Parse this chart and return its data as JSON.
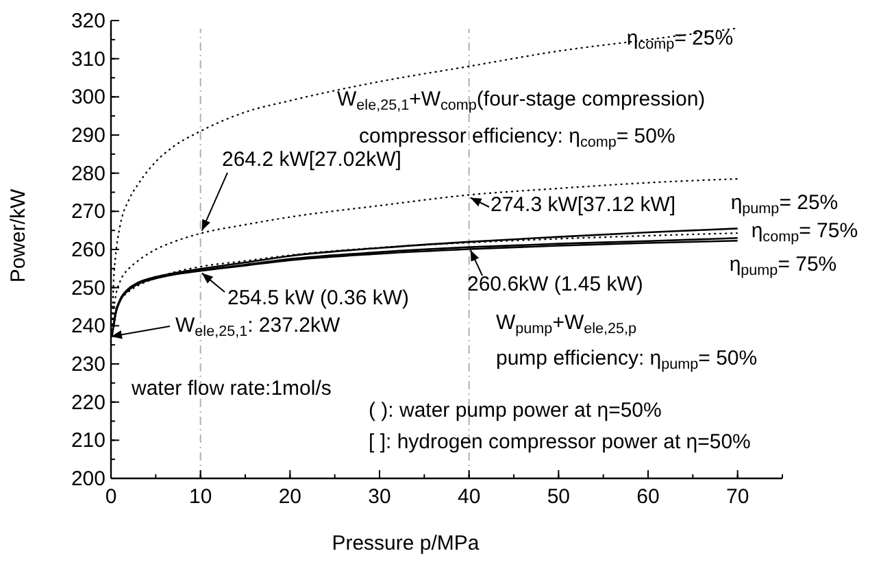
{
  "chart_data": {
    "type": "line",
    "xlabel": "Pressure p/MPa",
    "ylabel": "Power/kW",
    "x": [
      0.1,
      0.3,
      0.5,
      1,
      2,
      3,
      5,
      7,
      10,
      15,
      20,
      30,
      40,
      50,
      60,
      70
    ],
    "series": [
      {
        "name": "η$_{comp}$= 25%",
        "color": "#000000",
        "line_style": "dotted",
        "values": [
          237.2,
          252,
          258,
          266,
          273,
          277,
          283,
          287,
          291,
          296,
          299,
          304,
          308,
          312,
          315,
          318
        ]
      },
      {
        "color": "#000000",
        "line_style": "dotted",
        "values": [
          237.2,
          244,
          247.5,
          251.5,
          255,
          257,
          260,
          262,
          264.2,
          266.5,
          268.5,
          271.5,
          274.3,
          276,
          277.5,
          278.5
        ]
      },
      {
        "name": "η$_{comp}$= 75%",
        "color": "#000000",
        "line_style": "dotted",
        "values": [
          237.2,
          242,
          244,
          246.5,
          249,
          250.5,
          252.5,
          254,
          255.5,
          257,
          258.5,
          260.5,
          261.8,
          262.8,
          263.6,
          264.3
        ]
      },
      {
        "name": "η$_{pump}$= 25%",
        "color": "#000000",
        "line_style": "solid",
        "values": [
          null,
          240.3,
          243.3,
          246.8,
          249.8,
          251.3,
          252.8,
          253.8,
          254.9,
          256.6,
          258.3,
          260.4,
          262,
          263.3,
          264.5,
          265.5
        ]
      },
      {
        "color": "#000000",
        "line_style": "solid",
        "values": [
          237.2,
          240,
          243,
          246.5,
          249.5,
          251,
          252.5,
          253.5,
          254.5,
          256,
          257.5,
          259.3,
          260.6,
          261.5,
          262.2,
          263
        ]
      },
      {
        "name": "η$_{pump}$= 75%",
        "color": "#000000",
        "line_style": "solid",
        "values": [
          null,
          239.9,
          242.9,
          246.4,
          249.4,
          250.9,
          252.4,
          253.4,
          254.4,
          255.8,
          257.2,
          258.9,
          260.1,
          261,
          261.7,
          262.3
        ]
      }
    ],
    "xlim": [
      0,
      75
    ],
    "xticks": [
      0,
      10,
      20,
      30,
      40,
      50,
      60,
      70
    ],
    "ylim": [
      200,
      320
    ],
    "yticks": [
      200,
      210,
      220,
      230,
      240,
      250,
      260,
      270,
      280,
      290,
      300,
      310,
      320
    ],
    "ref_lines": [
      {
        "axis": "x",
        "value": 10,
        "color": "#b0b0b0",
        "line_style": "dashdot"
      },
      {
        "axis": "x",
        "value": 40,
        "color": "#b0b0b0",
        "line_style": "dashdot"
      }
    ],
    "annotations": [
      "W$_{ele,25,1}$+W$_{comp}$(four-stage compression)",
      "compressor efficiency: η$_{comp}$= 50%",
      "W$_{pump}$+W$_{ele,25,p}$",
      "pump efficiency: η$_{pump}$= 50%",
      "water flow rate:1mol/s",
      "( ): water pump power at η=50%",
      "[ ]: hydrogen compressor power at η=50%",
      {
        "text": "264.2 kW[27.02kW]",
        "x": 10,
        "y": 264.2
      },
      {
        "text": "274.3 kW[37.12 kW]",
        "x": 40,
        "y": 274.3
      },
      {
        "text": "254.5 kW (0.36 kW)",
        "x": 10,
        "y": 254.5
      },
      {
        "text": "260.6kW (1.45 kW)",
        "x": 40,
        "y": 260.6
      },
      {
        "text": "W$_{ele,25,1}$: 237.2kW",
        "x": 0,
        "y": 237.2
      }
    ],
    "grid": false,
    "marker": "none"
  }
}
